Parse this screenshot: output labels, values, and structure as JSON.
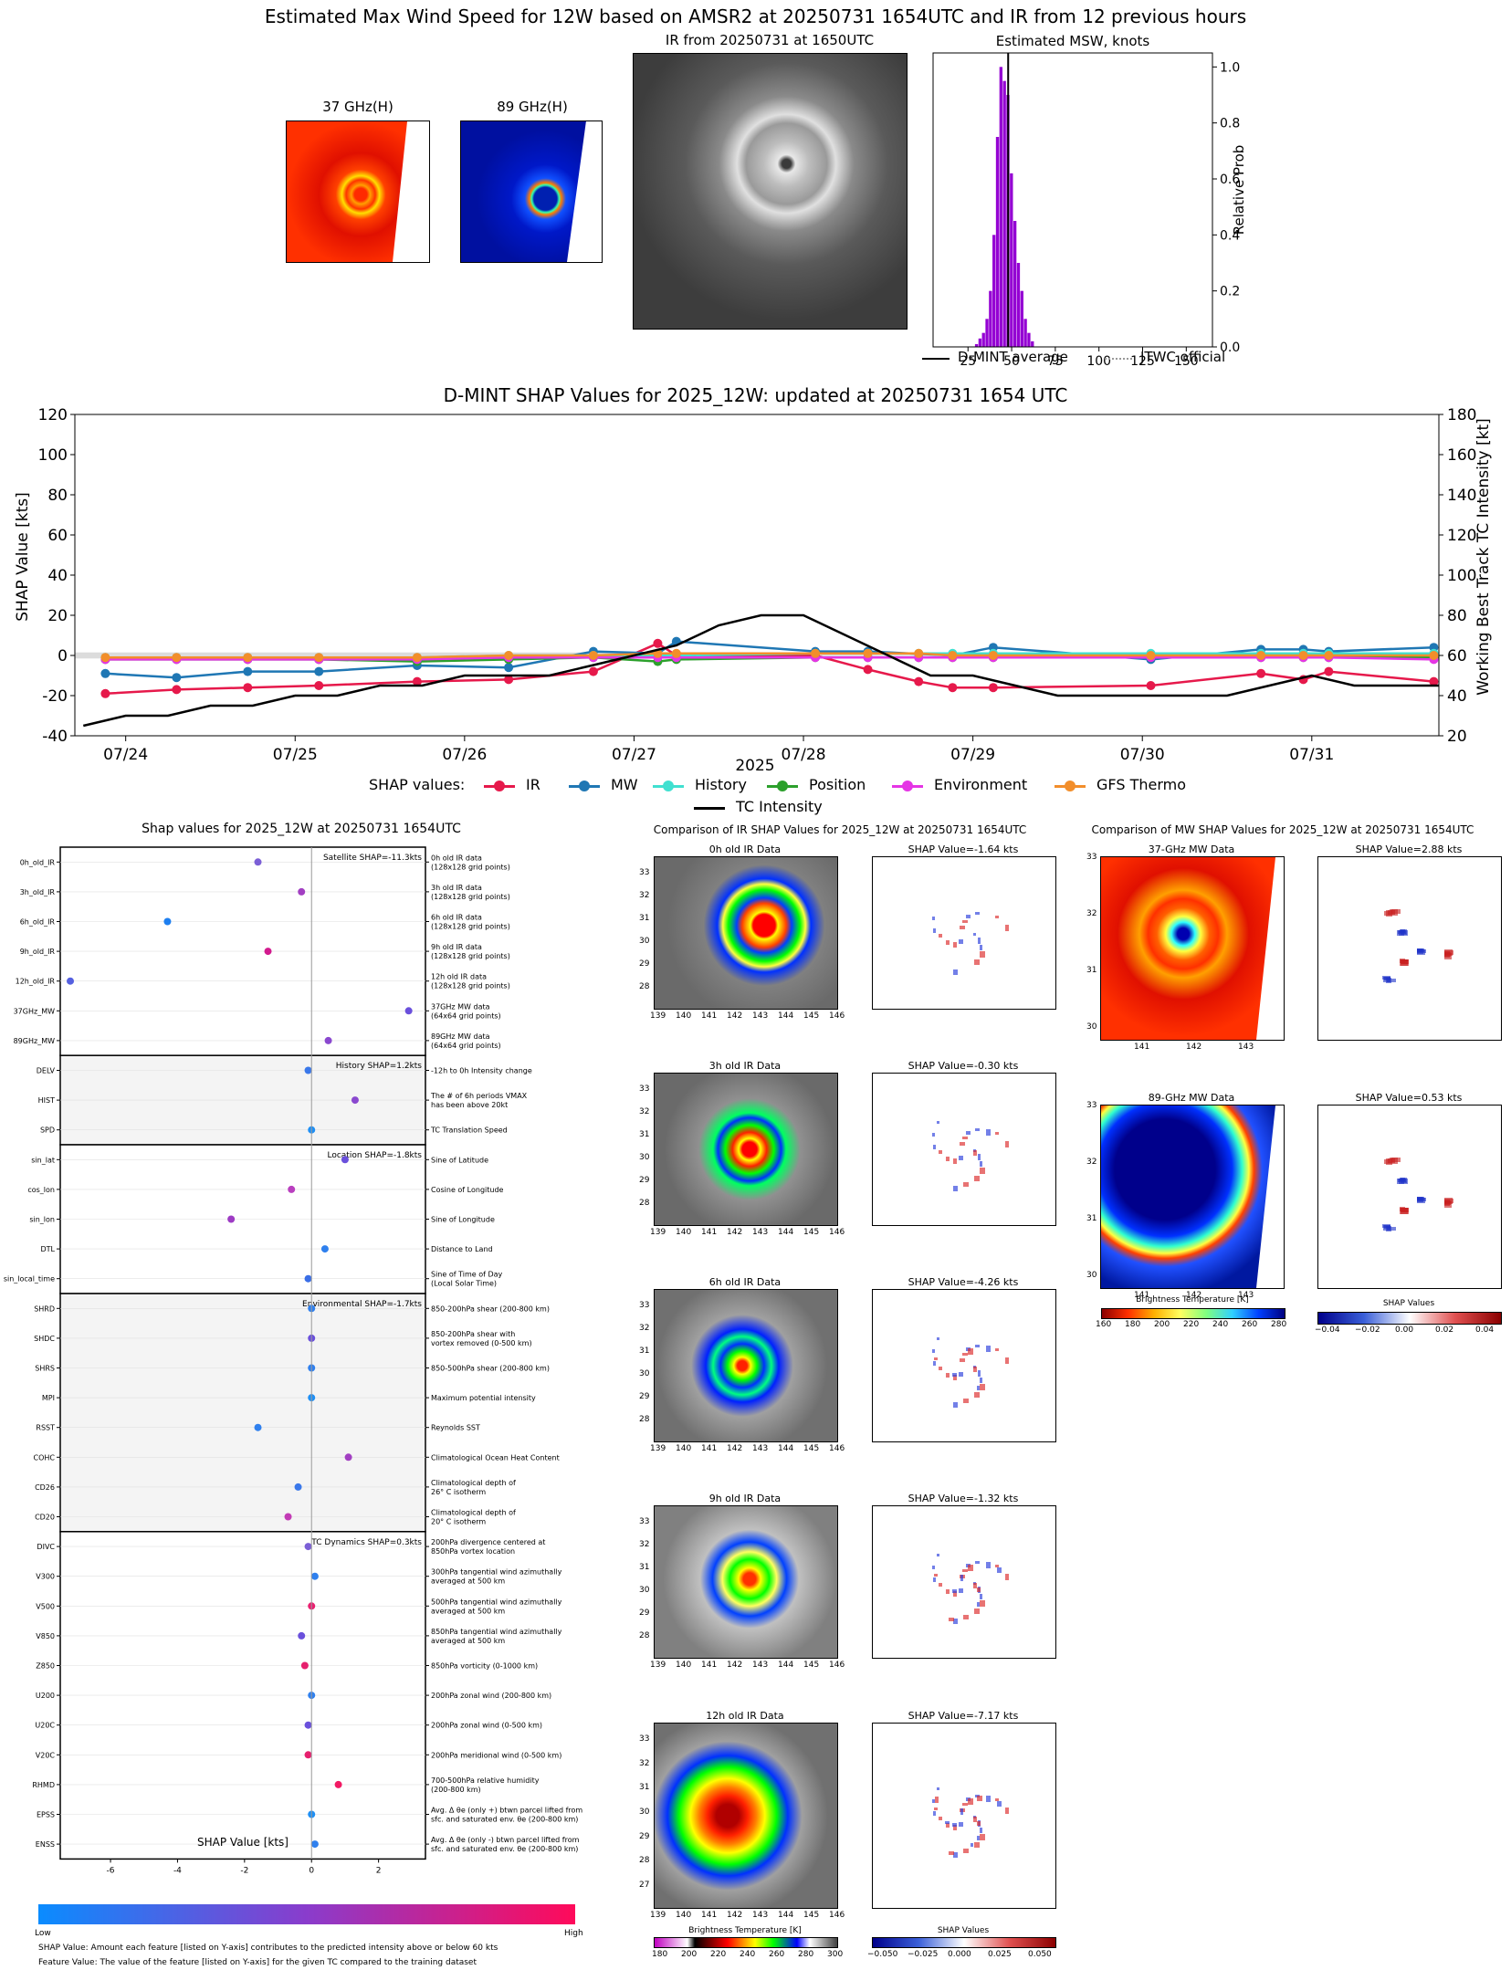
{
  "header": {
    "title": "Estimated Max Wind Speed for 12W based on AMSR2 at 20250731 1654UTC and IR from 12 previous hours",
    "thumb37_label": "37 GHz(H)",
    "thumb89_label": "89 GHz(H)",
    "ir_label": "IR from 20250731 at 1650UTC",
    "msw_label": "Estimated MSW, knots"
  },
  "msw_chart": {
    "type": "bar",
    "title": "Estimated MSW, knots",
    "ylabel": "Relative Prob",
    "xticks": [
      25,
      50,
      75,
      100,
      125,
      150
    ],
    "yticks": [
      "0.0",
      "0.2",
      "0.4",
      "0.6",
      "0.8",
      "1.0"
    ],
    "xlim": [
      5,
      165
    ],
    "ylim": [
      0,
      1.05
    ],
    "bins_x": [
      30,
      32,
      34,
      36,
      38,
      40,
      42,
      44,
      46,
      48,
      50,
      52,
      54,
      56,
      58,
      60,
      62
    ],
    "bins_y": [
      0.01,
      0.03,
      0.05,
      0.1,
      0.2,
      0.4,
      0.75,
      1.0,
      0.95,
      0.9,
      0.62,
      0.45,
      0.3,
      0.2,
      0.1,
      0.05,
      0.02
    ],
    "dmint_average": 48,
    "legend": [
      "D-MINT average",
      "JTWC official"
    ]
  },
  "timeseries": {
    "type": "line",
    "title": "D-MINT SHAP Values for 2025_12W: updated at 20250731 1654 UTC",
    "ylabel": "SHAP Value [kts]",
    "y2label": "Working Best Track TC Intensity [kt]",
    "xlabel": "2025",
    "yticks": [
      -40,
      -20,
      0,
      20,
      40,
      60,
      80,
      100,
      120
    ],
    "y2ticks": [
      20,
      40,
      60,
      80,
      100,
      120,
      140,
      160,
      180
    ],
    "xticks": [
      "07/24",
      "07/25",
      "07/26",
      "07/27",
      "07/28",
      "07/29",
      "07/30",
      "07/31"
    ],
    "xlim": [
      23.7,
      31.75
    ],
    "ylim": [
      -40,
      120
    ],
    "y2lim": [
      20,
      180
    ],
    "legend_prefix": "SHAP values:",
    "series": [
      {
        "name": "IR",
        "color": "#e6194b",
        "x": [
          23.88,
          24.3,
          24.72,
          25.14,
          25.72,
          26.26,
          26.76,
          27.14,
          27.25,
          28.07,
          28.38,
          28.68,
          28.88,
          29.12,
          30.05,
          30.7,
          30.95,
          31.1,
          31.72
        ],
        "y": [
          -19,
          -17,
          -16,
          -15,
          -13,
          -12,
          -8,
          6,
          0,
          0,
          -7,
          -13,
          -16,
          -16,
          -15,
          -9,
          -12,
          -8,
          -13
        ]
      },
      {
        "name": "MW",
        "color": "#1f77b4",
        "x": [
          23.88,
          24.3,
          24.72,
          25.14,
          25.72,
          26.26,
          26.76,
          27.14,
          27.25,
          28.07,
          28.38,
          28.88,
          29.12,
          30.05,
          30.7,
          30.95,
          31.1,
          31.72
        ],
        "y": [
          -9,
          -11,
          -8,
          -8,
          -5,
          -6,
          2,
          1,
          7,
          2,
          2,
          0,
          4,
          -2,
          3,
          3,
          2,
          4
        ]
      },
      {
        "name": "History",
        "color": "#40e0d0",
        "x": [
          23.88,
          24.3,
          24.72,
          25.14,
          25.72,
          26.26,
          26.76,
          27.14,
          27.25,
          28.07,
          28.38,
          28.68,
          28.88,
          29.12,
          30.05,
          30.7,
          30.95,
          31.1,
          31.72
        ],
        "y": [
          -1,
          -1,
          -1,
          -1,
          -1,
          0,
          0,
          0,
          0,
          1,
          1,
          1,
          1,
          1,
          1,
          1,
          1,
          1,
          1
        ]
      },
      {
        "name": "Position",
        "color": "#2ca02c",
        "x": [
          23.88,
          24.3,
          24.72,
          25.14,
          25.72,
          26.26,
          26.76,
          27.14,
          27.25,
          28.07,
          28.38,
          28.68,
          28.88,
          29.12,
          30.05,
          30.7,
          30.95,
          31.1,
          31.72
        ],
        "y": [
          -2,
          -2,
          -2,
          -2,
          -3,
          -2,
          -1,
          -3,
          -2,
          -1,
          -1,
          -1,
          -1,
          -1,
          -1,
          -1,
          -1,
          -1,
          -1
        ]
      },
      {
        "name": "Environment",
        "color": "#e535e5",
        "x": [
          23.88,
          24.3,
          24.72,
          25.14,
          25.72,
          26.26,
          26.76,
          27.14,
          27.25,
          28.07,
          28.38,
          28.68,
          28.88,
          29.12,
          30.05,
          30.7,
          30.95,
          31.1,
          31.72
        ],
        "y": [
          -2,
          -2,
          -2,
          -2,
          -2,
          -1,
          -1,
          -1,
          -1,
          -1,
          -1,
          -1,
          -1,
          -1,
          -1,
          -1,
          -1,
          -1,
          -2
        ]
      },
      {
        "name": "GFS Thermo",
        "color": "#f28e2b",
        "x": [
          23.88,
          24.3,
          24.72,
          25.14,
          25.72,
          26.26,
          26.76,
          27.14,
          27.25,
          28.07,
          28.38,
          28.68,
          28.88,
          29.12,
          30.05,
          30.7,
          30.95,
          31.1,
          31.72
        ],
        "y": [
          -1,
          -1,
          -1,
          -1,
          -1,
          0,
          0,
          1,
          1,
          1,
          1,
          1,
          0,
          0,
          0,
          0,
          0,
          0,
          0
        ]
      }
    ],
    "intensity": {
      "name": "TC Intensity",
      "color": "#000000",
      "x": [
        23.75,
        24.0,
        24.25,
        24.5,
        24.75,
        25.0,
        25.25,
        25.5,
        25.75,
        26.0,
        26.25,
        26.5,
        26.75,
        27.0,
        27.25,
        27.5,
        27.75,
        28.0,
        28.25,
        28.5,
        28.75,
        29.0,
        29.25,
        29.5,
        29.75,
        30.0,
        30.25,
        30.5,
        30.75,
        31.0,
        31.25,
        31.5,
        31.75
      ],
      "y": [
        25,
        30,
        30,
        35,
        35,
        40,
        40,
        45,
        45,
        50,
        50,
        50,
        55,
        60,
        65,
        75,
        80,
        80,
        70,
        60,
        50,
        50,
        45,
        40,
        40,
        40,
        40,
        40,
        45,
        50,
        45,
        45,
        45
      ]
    }
  },
  "shap_dots": {
    "title": "Shap values for 2025_12W at 20250731 1654UTC",
    "xlabel": "SHAP Value [kts]",
    "xticks": [
      -6,
      -4,
      -2,
      0,
      2
    ],
    "xlim": [
      -7.5,
      3.4
    ],
    "colorbar_low": "Low",
    "colorbar_high": "High",
    "footer1": "SHAP Value: Amount each feature [listed on Y-axis] contributes to the predicted intensity above or below 60 kts",
    "footer2": "Feature Value: The value of the feature [listed on Y-axis] for the given TC compared to the training dataset",
    "groups": [
      {
        "summary": "Satellite SHAP=-11.3kts",
        "shaded": false,
        "features": [
          {
            "name": "0h_old_IR",
            "desc1": "0h old IR data",
            "desc2": "(128x128 grid points)",
            "value": -1.6,
            "color": "#7b5fd6"
          },
          {
            "name": "3h_old_IR",
            "desc1": "3h old IR data",
            "desc2": "(128x128 grid points)",
            "value": -0.3,
            "color": "#a23fc2"
          },
          {
            "name": "6h_old_IR",
            "desc1": "6h old IR data",
            "desc2": "(128x128 grid points)",
            "value": -4.3,
            "color": "#1e7ff0"
          },
          {
            "name": "9h_old_IR",
            "desc1": "9h old IR data",
            "desc2": "(128x128 grid points)",
            "value": -1.3,
            "color": "#d21a8e"
          },
          {
            "name": "12h_old_IR",
            "desc1": "12h old IR data",
            "desc2": "(128x128 grid points)",
            "value": -7.2,
            "color": "#5560e0"
          },
          {
            "name": "37GHz_MW",
            "desc1": "37GHz MW data",
            "desc2": "(64x64 grid points)",
            "value": 2.9,
            "color": "#6a50dc"
          },
          {
            "name": "89GHz_MW",
            "desc1": "89GHz MW data",
            "desc2": "(64x64 grid points)",
            "value": 0.5,
            "color": "#8a48cf"
          }
        ]
      },
      {
        "summary": "History SHAP=1.2kts",
        "shaded": true,
        "features": [
          {
            "name": "DELV",
            "desc1": "-12h to 0h Intensity change",
            "desc2": "",
            "value": -0.1,
            "color": "#3a78ea"
          },
          {
            "name": "HIST",
            "desc1": "The # of 6h periods VMAX",
            "desc2": "has been above 20kt",
            "value": 1.3,
            "color": "#8a48cf"
          },
          {
            "name": "SPD",
            "desc1": "TC Translation Speed",
            "desc2": "",
            "value": 0.0,
            "color": "#1e8ff5"
          }
        ]
      },
      {
        "summary": "Location SHAP=-1.8kts",
        "shaded": false,
        "features": [
          {
            "name": "sin_lat",
            "desc1": "Sine of Latitude",
            "desc2": "",
            "value": 1.0,
            "color": "#6a50dc"
          },
          {
            "name": "cos_lon",
            "desc1": "Cosine of Longitude",
            "desc2": "",
            "value": -0.6,
            "color": "#b93fbf"
          },
          {
            "name": "sin_lon",
            "desc1": "Sine of Longitude",
            "desc2": "",
            "value": -2.4,
            "color": "#9d3bc4"
          },
          {
            "name": "DTL",
            "desc1": "Distance to Land",
            "desc2": "",
            "value": 0.4,
            "color": "#2f80ee"
          },
          {
            "name": "sin_local_time",
            "desc1": "Sine of Time of Day",
            "desc2": "(Local Solar Time)",
            "value": -0.1,
            "color": "#3a6ee6"
          }
        ]
      },
      {
        "summary": "Environmental SHAP=-1.7kts",
        "shaded": true,
        "features": [
          {
            "name": "SHRD",
            "desc1": "850-200hPa shear (200-800 km)",
            "desc2": "",
            "value": 0.0,
            "color": "#2f80ee"
          },
          {
            "name": "SHDC",
            "desc1": "850-200hPa shear with",
            "desc2": "vortex removed (0-500 km)",
            "value": 0.0,
            "color": "#6a50dc"
          },
          {
            "name": "SHRS",
            "desc1": "850-500hPa shear (200-800 km)",
            "desc2": "",
            "value": 0.0,
            "color": "#2f80ee"
          },
          {
            "name": "MPI",
            "desc1": "Maximum potential intensity",
            "desc2": "",
            "value": 0.0,
            "color": "#1e8ff5"
          },
          {
            "name": "RSST",
            "desc1": "Reynolds SST",
            "desc2": "",
            "value": -1.6,
            "color": "#2f80ee"
          },
          {
            "name": "COHC",
            "desc1": "Climatological Ocean Heat Content",
            "desc2": "",
            "value": 1.1,
            "color": "#a23fc2"
          },
          {
            "name": "CD26",
            "desc1": "Climatological depth of",
            "desc2": "26° C isotherm",
            "value": -0.4,
            "color": "#3a78ea"
          },
          {
            "name": "CD20",
            "desc1": "Climatological depth of",
            "desc2": "20° C isotherm",
            "value": -0.7,
            "color": "#c23bb5"
          }
        ]
      },
      {
        "summary": "TC Dynamics SHAP=0.3kts",
        "shaded": false,
        "features": [
          {
            "name": "DIVC",
            "desc1": "200hPa divergence centered at",
            "desc2": "850hPa vortex location",
            "value": -0.1,
            "color": "#7b5fd6"
          },
          {
            "name": "V300",
            "desc1": "300hPa tangential wind azimuthally",
            "desc2": "averaged at 500 km",
            "value": 0.1,
            "color": "#2f80ee"
          },
          {
            "name": "V500",
            "desc1": "500hPa tangential wind azimuthally",
            "desc2": "averaged at 500 km",
            "value": 0.0,
            "color": "#ea1f70"
          },
          {
            "name": "V850",
            "desc1": "850hPa tangential wind azimuthally",
            "desc2": "averaged at 500 km",
            "value": -0.3,
            "color": "#6a50dc"
          },
          {
            "name": "Z850",
            "desc1": "850hPa vorticity (0-1000 km)",
            "desc2": "",
            "value": -0.2,
            "color": "#e6206e"
          },
          {
            "name": "U200",
            "desc1": "200hPa zonal wind (200-800 km)",
            "desc2": "",
            "value": 0.0,
            "color": "#2f80ee"
          },
          {
            "name": "U20C",
            "desc1": "200hPa zonal wind (0-500 km)",
            "desc2": "",
            "value": -0.1,
            "color": "#6a50dc"
          },
          {
            "name": "V20C",
            "desc1": "200hPa meridional wind (0-500 km)",
            "desc2": "",
            "value": -0.1,
            "color": "#e6206e"
          },
          {
            "name": "RHMD",
            "desc1": "700-500hPa relative humidity",
            "desc2": "(200-800 km)",
            "value": 0.8,
            "color": "#f21a64"
          },
          {
            "name": "EPSS",
            "desc1": "Avg. Δ θe (only +) btwn parcel lifted from",
            "desc2": "sfc. and saturated env. θe (200-800 km)",
            "value": 0.0,
            "color": "#1e8ff5"
          },
          {
            "name": "ENSS",
            "desc1": "Avg. Δ θe (only -) btwn parcel lifted from",
            "desc2": "sfc. and saturated env. θe (200-800 km)",
            "value": 0.1,
            "color": "#2f80ee"
          }
        ]
      }
    ]
  },
  "ir_comparison": {
    "title": "Comparison of IR SHAP Values for 2025_12W at 20250731 1654UTC",
    "colorbar_label": "Brightness Temperature [K]",
    "colorbar_ticks": [
      "180",
      "200",
      "220",
      "240",
      "260",
      "280",
      "300"
    ],
    "shap_colorbar_label": "SHAP Values",
    "shap_colorbar_ticks": [
      "−0.050",
      "−0.025",
      "0.000",
      "0.025",
      "0.050"
    ],
    "xticks": [
      "139",
      "140",
      "141",
      "142",
      "143",
      "144",
      "145",
      "146"
    ],
    "rows": [
      {
        "label": "0h old IR Data",
        "shap": "SHAP Value=-1.64 kts",
        "yticks": [
          "33",
          "32",
          "31",
          "30",
          "29",
          "28"
        ]
      },
      {
        "label": "3h old IR Data",
        "shap": "SHAP Value=-0.30 kts",
        "yticks": [
          "33",
          "32",
          "31",
          "30",
          "29",
          "28"
        ]
      },
      {
        "label": "6h old IR Data",
        "shap": "SHAP Value=-4.26 kts",
        "yticks": [
          "33",
          "32",
          "31",
          "30",
          "29",
          "28"
        ]
      },
      {
        "label": "9h old IR Data",
        "shap": "SHAP Value=-1.32 kts",
        "yticks": [
          "33",
          "32",
          "31",
          "30",
          "29",
          "28"
        ]
      },
      {
        "label": "12h old IR Data",
        "shap": "SHAP Value=-7.17 kts",
        "yticks": [
          "33",
          "32",
          "31",
          "30",
          "29",
          "28",
          "27"
        ]
      }
    ]
  },
  "mw_comparison": {
    "title": "Comparison of MW SHAP Values for 2025_12W at 20250731 1654UTC",
    "colorbar_label": "Brightness Temperature [K]",
    "colorbar_ticks": [
      "160",
      "180",
      "200",
      "220",
      "240",
      "260",
      "280"
    ],
    "shap_colorbar_label": "SHAP Values",
    "shap_colorbar_ticks": [
      "−0.04",
      "−0.02",
      "0.00",
      "0.02",
      "0.04"
    ],
    "xticks": [
      "141",
      "142",
      "143"
    ],
    "yticks": [
      "33",
      "32",
      "31",
      "30"
    ],
    "rows": [
      {
        "label": "37-GHz MW Data",
        "shap": "SHAP Value=2.88 kts"
      },
      {
        "label": "89-GHz MW Data",
        "shap": "SHAP Value=0.53 kts"
      }
    ]
  }
}
